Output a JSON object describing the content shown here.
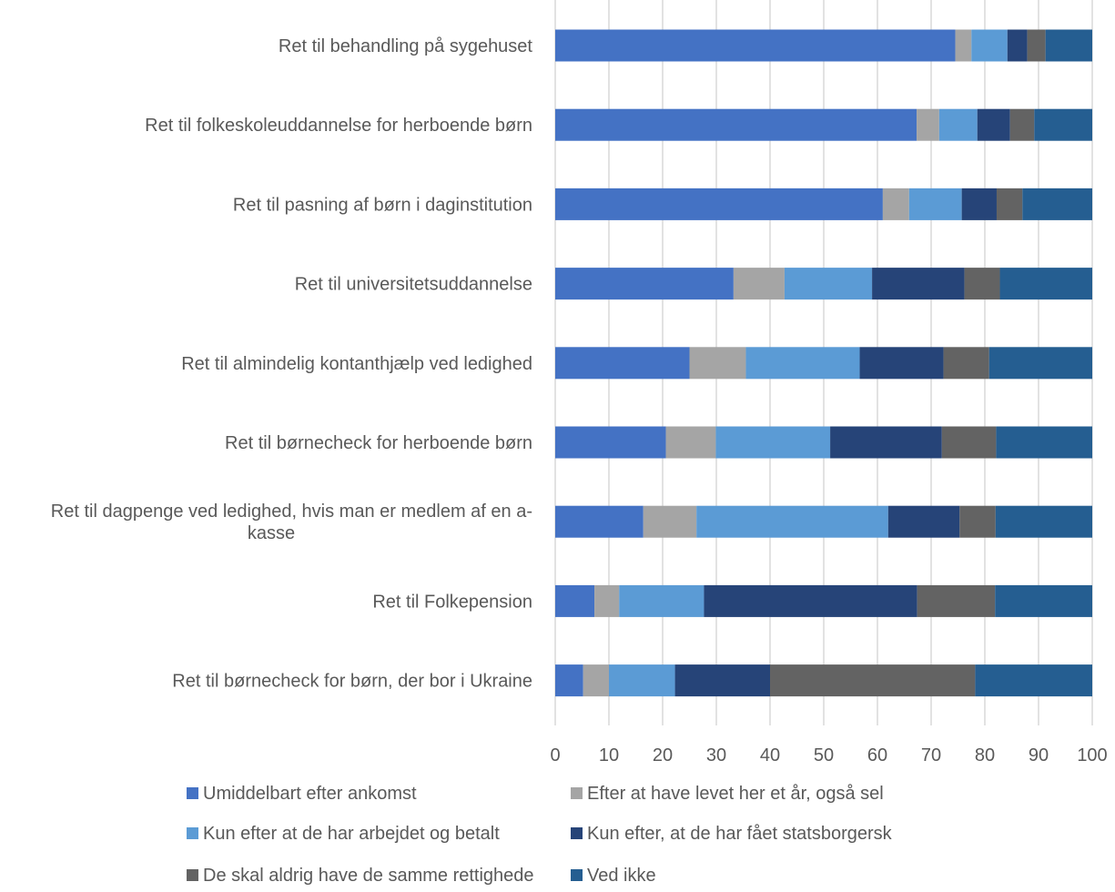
{
  "chart_data": {
    "type": "bar",
    "orientation": "horizontal",
    "stacked": true,
    "categories": [
      [
        "Ret til behandling på sygehuset"
      ],
      [
        "Ret til folkeskoleuddannelse for herboende børn"
      ],
      [
        "Ret til pasning af børn i daginstitution"
      ],
      [
        "Ret til universitetsuddannelse"
      ],
      [
        "Ret til almindelig kontanthjælp ved ledighed"
      ],
      [
        "Ret til børnecheck for herboende børn"
      ],
      [
        "Ret til dagpenge ved ledighed, hvis man er medlem af en a-",
        "kasse"
      ],
      [
        "Ret til Folkepension"
      ],
      [
        "Ret til børnecheck for børn, der bor i Ukraine"
      ]
    ],
    "series": [
      {
        "name": "Umiddelbart efter ankomst",
        "color": "#4472C4",
        "values": [
          74.5,
          67.3,
          61.0,
          33.2,
          25.0,
          20.6,
          16.4,
          7.3,
          5.2
        ]
      },
      {
        "name": "Efter at have levet her et år, også sel",
        "color": "#A5A5A5",
        "values": [
          3.0,
          4.2,
          4.9,
          9.5,
          10.5,
          9.3,
          9.9,
          4.6,
          4.8
        ]
      },
      {
        "name": "Kun efter at de har arbejdet og betalt",
        "color": "#5B9BD5",
        "values": [
          6.7,
          7.1,
          9.8,
          16.3,
          21.2,
          21.3,
          35.7,
          15.8,
          12.3
        ]
      },
      {
        "name": "Kun efter, at de har fået statsborgersk",
        "color": "#264478",
        "values": [
          3.7,
          6.1,
          6.5,
          17.2,
          15.6,
          20.8,
          13.3,
          39.7,
          17.7
        ]
      },
      {
        "name": "De skal aldrig have de samme rettighede",
        "color": "#636363",
        "values": [
          3.4,
          4.5,
          4.8,
          6.6,
          8.5,
          10.1,
          6.7,
          14.5,
          38.2
        ]
      },
      {
        "name": "Ved ikke",
        "color": "#255E91",
        "values": [
          8.7,
          10.8,
          13.0,
          17.2,
          19.2,
          17.9,
          18.0,
          18.1,
          21.8
        ]
      }
    ],
    "xlim": [
      0,
      100
    ],
    "x_ticks": [
      "0",
      "10",
      "20",
      "30",
      "40",
      "50",
      "60",
      "70",
      "80",
      "90",
      "100"
    ],
    "grid": true,
    "legend_position": "bottom"
  }
}
